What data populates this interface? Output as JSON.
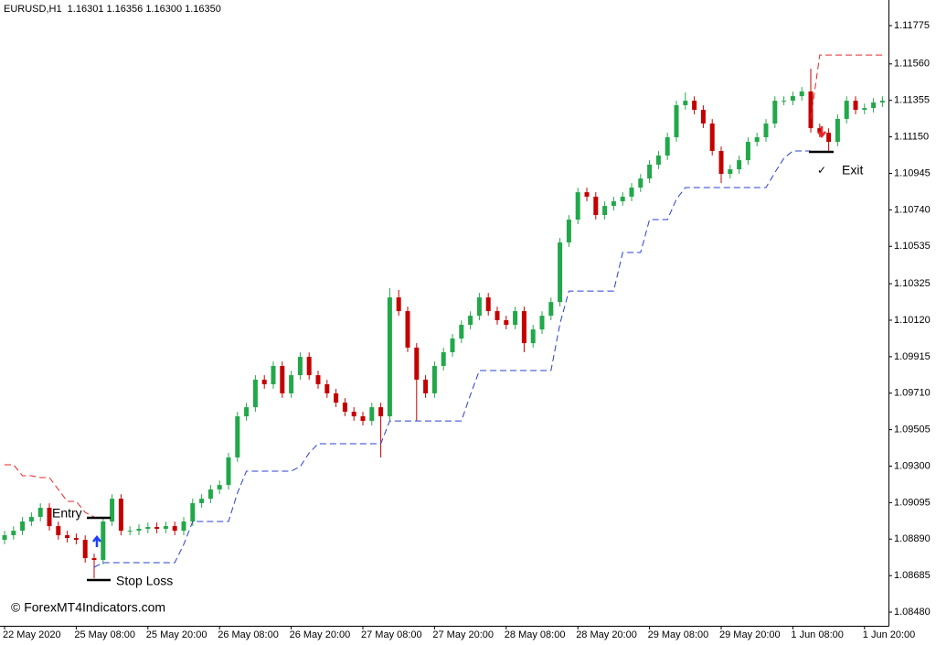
{
  "chart_data": {
    "type": "candlestick",
    "title": "EURUSD,H1  1.16301 1.16356 1.16300 1.16350",
    "watermark": "© ForexMT4Indicators.com",
    "annotations": [
      "Entry",
      "Stop Loss",
      "Exit",
      "✓"
    ],
    "up_color": "#22a84a",
    "down_color": "#c40000",
    "grid": false,
    "ylim": [
      1.08403,
      1.11919
    ],
    "yticks": [
      1.11775,
      {
        "value": 1.1156,
        "label": "1.11560"
      },
      1.11355,
      {
        "value": 1.1115,
        "label": "1.11150"
      },
      1.10945,
      {
        "value": 1.1074,
        "label": "1.10740"
      },
      1.10535,
      1.10325,
      {
        "value": 1.1012,
        "label": "1.10120"
      },
      1.09915,
      {
        "value": 1.0971,
        "label": "1.09710"
      },
      1.09505,
      {
        "value": 1.093,
        "label": "1.09300"
      },
      1.09095,
      {
        "value": 1.0889,
        "label": "1.08890"
      },
      1.08685,
      {
        "value": 1.0848,
        "label": "1.08480"
      }
    ],
    "categories": [
      "22 May 2020",
      null,
      null,
      null,
      null,
      null,
      null,
      null,
      "25 May 08:00",
      null,
      null,
      null,
      null,
      null,
      null,
      null,
      "25 May 20:00",
      null,
      null,
      null,
      null,
      null,
      null,
      null,
      "26 May 08:00",
      null,
      null,
      null,
      null,
      null,
      null,
      null,
      "26 May 20:00",
      null,
      null,
      null,
      null,
      null,
      null,
      null,
      "27 May 08:00",
      null,
      null,
      null,
      null,
      null,
      null,
      null,
      "27 May 20:00",
      null,
      null,
      null,
      null,
      null,
      null,
      null,
      "28 May 08:00",
      null,
      null,
      null,
      null,
      null,
      null,
      null,
      "28 May 20:00",
      null,
      null,
      null,
      null,
      null,
      null,
      null,
      "29 May 08:00",
      null,
      null,
      null,
      null,
      null,
      null,
      null,
      "29 May 20:00",
      null,
      null,
      null,
      null,
      null,
      null,
      null,
      "1 Jun 08:00",
      null,
      null,
      null,
      null,
      null,
      null,
      null,
      "1 Jun 20:00",
      null,
      null
    ],
    "open": [
      1.08886,
      1.08912,
      1.08937,
      1.08989,
      1.09015,
      1.09066,
      1.08963,
      1.08912,
      1.08896,
      1.08886,
      1.08783,
      1.08773,
      1.08989,
      1.09117,
      1.08937,
      1.08937,
      1.08948,
      1.08958,
      1.08948,
      1.08963,
      1.08937,
      1.08989,
      1.09092,
      1.09117,
      1.09169,
      1.09194,
      1.09349,
      1.0958,
      1.09631,
      1.09786,
      1.0976,
      1.09863,
      1.09709,
      1.09811,
      1.09914,
      1.09811,
      1.0976,
      1.09709,
      1.09657,
      1.09606,
      1.0958,
      1.09554,
      1.09631,
      1.0958,
      1.10248,
      1.10171,
      1.09966,
      1.09786,
      1.09709,
      1.09863,
      1.0994,
      1.10017,
      1.10094,
      1.10145,
      1.10248,
      1.10171,
      1.1012,
      1.10094,
      1.10171,
      1.09991,
      1.10068,
      1.10145,
      1.10222,
      1.10557,
      1.10685,
      1.10839,
      1.10814,
      1.10711,
      1.10762,
      1.10788,
      1.10814,
      1.10865,
      1.10916,
      1.10994,
      1.11045,
      1.11148,
      1.11328,
      1.11353,
      1.11302,
      1.11225,
      1.11071,
      1.10942,
      1.10968,
      1.11019,
      1.11122,
      1.11148,
      1.11225,
      1.11353,
      1.11353,
      1.11379,
      1.11405,
      1.11199,
      1.11173,
      1.11122,
      1.11251,
      1.11353,
      1.11302,
      1.11312,
      1.11343
    ],
    "high": [
      1.08937,
      1.08962,
      1.09014,
      1.0904,
      1.09091,
      1.09091,
      1.08988,
      1.08937,
      1.08921,
      1.08911,
      1.08808,
      1.09014,
      1.09142,
      1.09142,
      1.08962,
      1.08973,
      1.08983,
      1.08983,
      1.08988,
      1.08988,
      1.09014,
      1.09117,
      1.09142,
      1.09194,
      1.09219,
      1.09374,
      1.09605,
      1.09656,
      1.09811,
      1.09811,
      1.09888,
      1.09888,
      1.09836,
      1.09939,
      1.09939,
      1.09836,
      1.09785,
      1.09734,
      1.09682,
      1.09631,
      1.09605,
      1.09656,
      1.09656,
      1.103,
      1.1029,
      1.10196,
      1.09991,
      1.09811,
      1.09888,
      1.09965,
      1.10042,
      1.10119,
      1.1017,
      1.10273,
      1.10273,
      1.10196,
      1.10145,
      1.10196,
      1.10196,
      1.10093,
      1.1017,
      1.10247,
      1.10582,
      1.1071,
      1.10864,
      1.10864,
      1.10839,
      1.10787,
      1.10813,
      1.10839,
      1.1089,
      1.10941,
      1.11019,
      1.1107,
      1.11173,
      1.11353,
      1.114,
      1.11378,
      1.11327,
      1.1125,
      1.11096,
      1.10993,
      1.11044,
      1.11147,
      1.11173,
      1.1125,
      1.11378,
      1.11378,
      1.11404,
      1.1143,
      1.11533,
      1.11224,
      1.11198,
      1.11276,
      1.11378,
      1.11378,
      1.11337,
      1.11368,
      1.11378
    ],
    "low": [
      1.08861,
      1.08887,
      1.08912,
      1.08964,
      1.0899,
      1.08938,
      1.08887,
      1.08871,
      1.08861,
      1.08758,
      1.0867,
      1.08748,
      1.08964,
      1.08912,
      1.08912,
      1.08912,
      1.08923,
      1.08923,
      1.08923,
      1.08912,
      1.08912,
      1.08964,
      1.09067,
      1.09092,
      1.09144,
      1.09169,
      1.09324,
      1.09555,
      1.09606,
      1.09735,
      1.09735,
      1.09684,
      1.09684,
      1.09786,
      1.09786,
      1.09735,
      1.09684,
      1.09632,
      1.09581,
      1.09555,
      1.09529,
      1.09529,
      1.09349,
      1.09555,
      1.10146,
      1.09941,
      1.09554,
      1.09684,
      1.09684,
      1.09838,
      1.09915,
      1.09992,
      1.10069,
      1.1012,
      1.10146,
      1.10095,
      1.10069,
      1.10069,
      1.0994,
      1.09966,
      1.10043,
      1.1012,
      1.10197,
      1.10532,
      1.1066,
      1.10789,
      1.10686,
      1.10686,
      1.10737,
      1.10763,
      1.10789,
      1.1084,
      1.10891,
      1.10969,
      1.1102,
      1.11123,
      1.11303,
      1.11277,
      1.112,
      1.11046,
      1.1089,
      1.10917,
      1.10943,
      1.10994,
      1.11097,
      1.11123,
      1.112,
      1.11328,
      1.11328,
      1.11354,
      1.11174,
      1.11148,
      1.1106,
      1.11097,
      1.11226,
      1.11277,
      1.11277,
      1.11287,
      1.11318
    ],
    "close": [
      1.08912,
      1.08937,
      1.08989,
      1.09015,
      1.09066,
      1.08963,
      1.08912,
      1.08896,
      1.08886,
      1.08783,
      1.08773,
      1.08989,
      1.09117,
      1.08937,
      1.08937,
      1.08948,
      1.08958,
      1.08948,
      1.08963,
      1.08937,
      1.08989,
      1.09092,
      1.09117,
      1.09169,
      1.09194,
      1.09349,
      1.0958,
      1.09631,
      1.09786,
      1.0976,
      1.09863,
      1.09709,
      1.09811,
      1.09914,
      1.09811,
      1.0976,
      1.09709,
      1.09657,
      1.09606,
      1.0958,
      1.09554,
      1.09631,
      1.0958,
      1.10248,
      1.10171,
      1.09966,
      1.09786,
      1.09709,
      1.09863,
      1.0994,
      1.10017,
      1.10094,
      1.10145,
      1.10248,
      1.10171,
      1.1012,
      1.10094,
      1.10171,
      1.09991,
      1.10068,
      1.10145,
      1.10222,
      1.10557,
      1.10685,
      1.10839,
      1.10814,
      1.10711,
      1.10762,
      1.10788,
      1.10814,
      1.10865,
      1.10916,
      1.10994,
      1.11045,
      1.11148,
      1.11328,
      1.11353,
      1.11302,
      1.11225,
      1.11071,
      1.10942,
      1.10968,
      1.11019,
      1.11122,
      1.11148,
      1.11225,
      1.11353,
      1.11353,
      1.11379,
      1.11405,
      1.11199,
      1.11173,
      1.11122,
      1.11251,
      1.11353,
      1.11302,
      1.11312,
      1.11343,
      1.11353
    ],
    "lines": [
      {
        "color": "#e8262b",
        "style": "dashed",
        "values": [
          1.09308,
          1.09308,
          1.09246,
          1.09246,
          1.09236,
          1.09236,
          1.09169,
          1.09102,
          1.09102,
          1.0904,
          1.09015,
          null,
          null,
          null,
          null,
          null,
          null,
          null,
          null,
          null,
          null,
          null,
          null,
          null,
          null,
          null,
          null,
          null,
          null,
          null,
          null,
          null,
          null,
          null,
          null,
          null,
          null,
          null,
          null,
          null,
          null,
          null,
          null,
          null,
          null,
          null,
          null,
          null,
          null,
          null,
          null,
          null,
          null,
          null,
          null,
          null,
          null,
          null,
          null,
          null,
          null,
          null,
          null,
          null,
          null,
          null,
          null,
          null,
          null,
          null,
          null,
          null,
          null,
          null,
          null,
          null,
          null,
          null,
          null,
          null,
          null,
          null,
          null,
          null,
          null,
          null,
          null,
          null,
          null,
          null,
          1.1125,
          1.1161,
          1.1161,
          1.1161,
          1.1161,
          1.1161,
          1.1161,
          1.1161,
          1.1161
        ]
      },
      {
        "color": "#2a3fd6",
        "style": "dashed",
        "values": [
          null,
          null,
          null,
          null,
          null,
          null,
          null,
          null,
          null,
          null,
          1.08732,
          1.08758,
          1.08758,
          1.08758,
          1.08758,
          1.08758,
          1.08758,
          1.08758,
          1.08758,
          1.08758,
          1.0886,
          1.08989,
          1.08989,
          1.08989,
          1.08989,
          1.08989,
          1.0915,
          1.09272,
          1.09272,
          1.09272,
          1.09272,
          1.09272,
          1.09272,
          1.09297,
          1.09374,
          1.09426,
          1.09426,
          1.09426,
          1.09426,
          1.09426,
          1.09426,
          1.09426,
          1.09426,
          1.09554,
          1.09554,
          1.09554,
          1.09554,
          1.09554,
          1.09554,
          1.09554,
          1.09554,
          1.09554,
          1.097,
          1.09837,
          1.09837,
          1.09837,
          1.09837,
          1.09837,
          1.09837,
          1.09837,
          1.09837,
          1.09837,
          1.101,
          1.10284,
          1.10284,
          1.10284,
          1.10284,
          1.10284,
          1.10284,
          1.105,
          1.105,
          1.105,
          1.10685,
          1.10685,
          1.10685,
          1.108,
          1.10865,
          1.10865,
          1.10865,
          1.10865,
          1.10865,
          1.10865,
          1.10865,
          1.10865,
          1.10865,
          1.10865,
          1.1095,
          1.1103,
          1.11071,
          1.11071,
          1.11071,
          null,
          null,
          null,
          null,
          null,
          null,
          null,
          null
        ]
      }
    ]
  }
}
